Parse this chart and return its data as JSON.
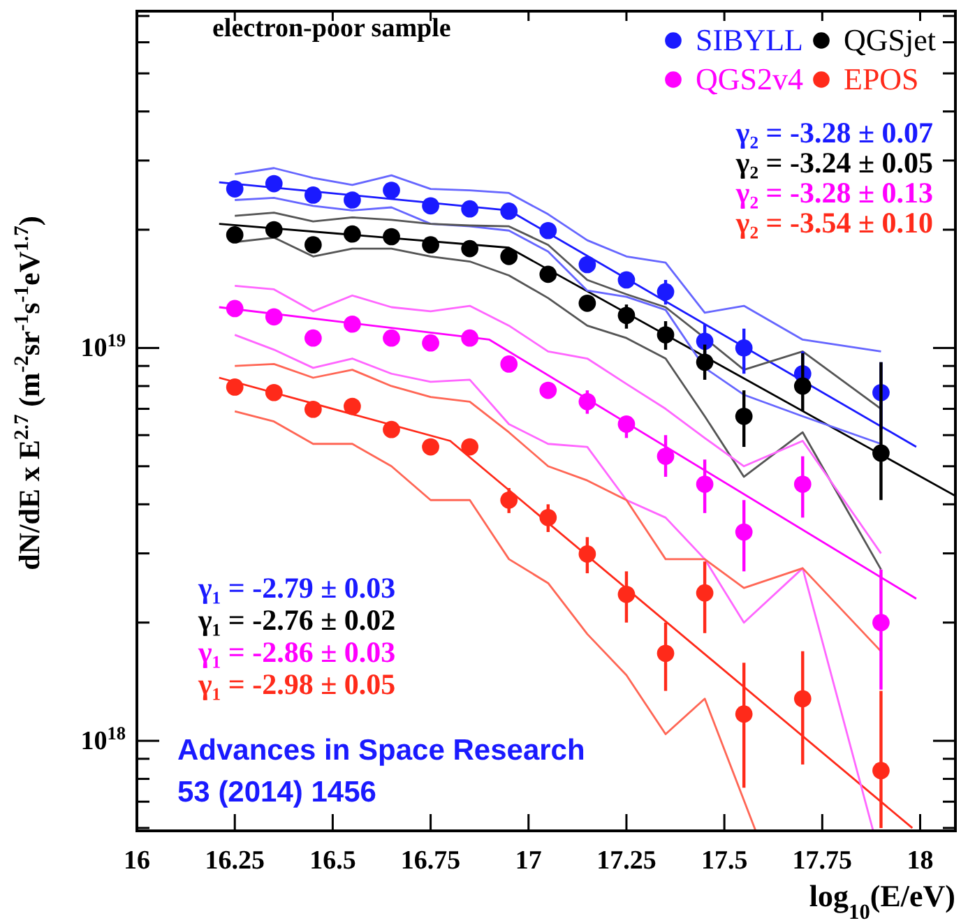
{
  "chart_data": {
    "type": "scatter",
    "xlabel": "log$_{10}$(E/eV)",
    "ylabel": "dN/dE x E$^{2.7}$ (m$^{-2}$sr$^{-1}$s$^{-1}$eV$^{1.7}$)",
    "annotations": [
      "electron-poor sample",
      "γ₂ = -3.28 ± 0.07",
      "γ₂ = -3.24 ± 0.05",
      "γ₂ = -3.28 ± 0.13",
      "γ₂ = -3.54 ± 0.10",
      "γ₁ = -2.79 ± 0.03",
      "γ₁ = -2.76 ± 0.02",
      "γ₁ = -2.86 ± 0.03",
      "γ₁ = -2.98 ± 0.05",
      "Advances in Space Research\n53 (2014) 1456"
    ],
    "x": [
      16.25,
      16.35,
      16.45,
      16.55,
      16.65,
      16.75,
      16.85,
      16.95,
      17.05,
      17.15,
      17.25,
      17.35,
      17.45,
      17.55,
      17.7,
      17.9
    ],
    "log": "y",
    "legend": "top right",
    "xlim": [
      16,
      18.09
    ],
    "xticks": [
      16,
      16.25,
      16.5,
      16.75,
      17,
      17.25,
      17.5,
      17.75,
      18
    ],
    "ylim": [
      5.9e+17,
      7.2e+19
    ],
    "yticks": [
      {
        "value": 6e+17,
        "label": null
      },
      {
        "value": 7e+17,
        "label": null
      },
      {
        "value": 8e+17,
        "label": null
      },
      {
        "value": 9e+17,
        "label": null
      },
      {
        "value": 1e+18,
        "label": "10$^{18}$"
      },
      {
        "value": 2e+18,
        "label": null
      },
      {
        "value": 3e+18,
        "label": null
      },
      {
        "value": 4e+18,
        "label": null
      },
      {
        "value": 5e+18,
        "label": null
      },
      {
        "value": 6e+18,
        "label": null
      },
      {
        "value": 7e+18,
        "label": null
      },
      {
        "value": 8e+18,
        "label": null
      },
      {
        "value": 9e+18,
        "label": null
      },
      {
        "value": 1e+19,
        "label": "10$^{19}$"
      },
      {
        "value": 2e+19,
        "label": null
      },
      {
        "value": 3e+19,
        "label": null
      },
      {
        "value": 4e+19,
        "label": null
      },
      {
        "value": 5e+19,
        "label": null
      },
      {
        "value": 6e+19,
        "label": null
      },
      {
        "value": 7e+19,
        "label": null
      }
    ],
    "series": [
      {
        "name": "SIBYLL",
        "marker": "circle",
        "color": "#1a1aff",
        "values": [
          2.54e+19,
          2.62e+19,
          2.45e+19,
          2.38e+19,
          2.52e+19,
          2.3e+19,
          2.26e+19,
          2.23e+19,
          1.99e+19,
          1.63e+19,
          1.49e+19,
          1.39e+19,
          1.04e+19,
          1e+19,
          8.6e+18,
          7.7e+18
        ],
        "errors": [
          null,
          null,
          null,
          null,
          null,
          null,
          null,
          null,
          null,
          null,
          null,
          [
            1.29e+19,
            1.49e+19
          ],
          [
            9.4e+18,
            1.15e+19
          ],
          [
            8.6e+18,
            1.12e+19
          ],
          [
            7.8e+18,
            9.8e+18
          ],
          [
            6.2e+18,
            9.2e+18
          ]
        ]
      },
      {
        "name": "QGSjet",
        "marker": "circle",
        "color": "#000000",
        "values": [
          1.94e+19,
          2e+19,
          1.83e+19,
          1.95e+19,
          1.92e+19,
          1.83e+19,
          1.79e+19,
          1.71e+19,
          1.54e+19,
          1.3e+19,
          1.21e+19,
          1.08e+19,
          9.2e+18,
          6.7e+18,
          8e+18,
          5.4e+18
        ],
        "errors": [
          null,
          null,
          null,
          null,
          null,
          null,
          null,
          null,
          null,
          null,
          [
            1.12e+19,
            1.29e+19
          ],
          [
            9.9e+18,
            1.17e+19
          ],
          [
            8.3e+18,
            1.02e+19
          ],
          [
            5.6e+18,
            7.8e+18
          ],
          [
            6.9e+18,
            9.7e+18
          ],
          [
            4.1e+18,
            9.2e+18
          ]
        ]
      },
      {
        "name": "QGS2v4",
        "marker": "circle",
        "color": "#ff00ff",
        "values": [
          1.26e+19,
          1.2e+19,
          1.06e+19,
          1.15e+19,
          1.06e+19,
          1.03e+19,
          1.06e+19,
          9.1e+18,
          7.8e+18,
          7.3e+18,
          6.4e+18,
          5.3e+18,
          4.5e+18,
          3.4e+18,
          4.5e+18,
          2e+18
        ],
        "errors": [
          null,
          null,
          null,
          null,
          null,
          null,
          null,
          null,
          null,
          [
            6.8e+18,
            7.8e+18
          ],
          [
            5.9e+18,
            6.7e+18
          ],
          [
            4.7e+18,
            6e+18
          ],
          [
            3.8e+18,
            5.2e+18
          ],
          [
            2.7e+18,
            4.1e+18
          ],
          [
            3.7e+18,
            5.3e+18
          ],
          [
            1.35e+18,
            2.73e+18
          ]
        ]
      },
      {
        "name": "EPOS",
        "marker": "circle",
        "color": "#ff2a1a",
        "values": [
          7.95e+18,
          7.7e+18,
          6.98e+18,
          7.1e+18,
          6.2e+18,
          5.6e+18,
          5.6e+18,
          4.1e+18,
          3.7e+18,
          2.99e+18,
          2.36e+18,
          1.67e+18,
          2.38e+18,
          1.17e+18,
          1.28e+18,
          8.4e+17
        ],
        "errors": [
          null,
          null,
          null,
          null,
          null,
          null,
          null,
          [
            3.8e+18,
            4.4e+18
          ],
          [
            3.4e+18,
            4e+18
          ],
          [
            2.67e+18,
            3.3e+18
          ],
          [
            2e+18,
            2.7e+18
          ],
          [
            1.34e+18,
            2e+18
          ],
          [
            1.88e+18,
            2.86e+18
          ],
          [
            7.6e+17,
            1.58e+18
          ],
          [
            8.7e+17,
            1.69e+18
          ],
          [
            6e+17,
            1.34e+18
          ]
        ]
      },
      {
        "type": "line",
        "color": "#1a1aff",
        "x": [
          16.21,
          16.95,
          17.99
        ],
        "values": [
          2.64e+19,
          2.24e+19,
          5.6e+18
        ]
      },
      {
        "type": "line",
        "color": "#000000",
        "x": [
          16.21,
          16.95,
          18.09
        ],
        "values": [
          2.07e+19,
          1.8e+19,
          4.2e+18
        ]
      },
      {
        "type": "line",
        "color": "#ff00ff",
        "x": [
          16.21,
          16.9,
          17.99
        ],
        "values": [
          1.27e+19,
          1.05e+19,
          2.3e+18
        ]
      },
      {
        "type": "line",
        "color": "#ff2a1a",
        "x": [
          16.21,
          16.8,
          17.98
        ],
        "values": [
          8.4e+18,
          5.8e+18,
          6e+17
        ]
      },
      {
        "type": "line",
        "color": "#6666ff",
        "values": [
          2.77e+19,
          2.87e+19,
          2.71e+19,
          2.6e+19,
          2.75e+19,
          2.54e+19,
          2.52e+19,
          2.48e+19,
          2.19e+19,
          1.88e+19,
          1.71e+19,
          1.65e+19,
          1.23e+19,
          1.28e+19,
          1.05e+19,
          9.8e+18
        ]
      },
      {
        "type": "line",
        "color": "#6666ff",
        "values": [
          2.38e+19,
          2.41e+19,
          2.3e+19,
          2.24e+19,
          2.28e+19,
          2.07e+19,
          2.04e+19,
          1.99e+19,
          1.76e+19,
          1.4e+19,
          1.35e+19,
          1.25e+19,
          8.9e+18,
          7.6e+18,
          6.7e+18,
          5.7e+18
        ]
      },
      {
        "type": "line",
        "color": "#555555",
        "values": [
          2.17e+19,
          2.21e+19,
          2.1e+19,
          2.15e+19,
          2.12e+19,
          2.07e+19,
          2.05e+19,
          2.04e+19,
          1.83e+19,
          1.49e+19,
          1.37e+19,
          1.27e+19,
          1.06e+19,
          8.8e+18,
          9.8e+18,
          7e+18
        ]
      },
      {
        "type": "line",
        "color": "#555555",
        "values": [
          1.86e+19,
          1.91e+19,
          1.71e+19,
          1.79e+19,
          1.79e+19,
          1.71e+19,
          1.66e+19,
          1.53e+19,
          1.34e+19,
          1.14e+19,
          1.06e+19,
          9.4e+18,
          6.7e+18,
          4.7e+18,
          6.1e+18,
          2.73e+18
        ]
      },
      {
        "type": "line",
        "color": "#ff66ff",
        "values": [
          1.44e+19,
          1.41e+19,
          1.24e+19,
          1.36e+19,
          1.27e+19,
          1.24e+19,
          1.28e+19,
          1.14e+19,
          9.8e+18,
          9.4e+18,
          8.1e+18,
          7e+18,
          5.9e+18,
          5e+18,
          5.8e+18,
          3e+18
        ]
      },
      {
        "type": "line",
        "color": "#ff66ff",
        "x": [
          16.25,
          16.35,
          16.45,
          16.55,
          16.65,
          16.75,
          16.85,
          16.95,
          17.05,
          17.15,
          17.25,
          17.35,
          17.45,
          17.55,
          17.7,
          17.88
        ],
        "values": [
          1.08e+19,
          9.9e+18,
          8.9e+18,
          9.4e+18,
          8.6e+18,
          8.2e+18,
          8.3e+18,
          6.4e+18,
          5.7e+18,
          5.6e+18,
          4.1e+18,
          3.7e+18,
          2.9e+18,
          2e+18,
          2.75e+18,
          5.9e+17
        ]
      },
      {
        "type": "line",
        "color": "#ff6655",
        "values": [
          9e+18,
          9.1e+18,
          8.4e+18,
          8.8e+18,
          8e+18,
          7.5e+18,
          7.3e+18,
          6.1e+18,
          5e+18,
          4.6e+18,
          4.1e+18,
          2.9e+18,
          2.9e+18,
          2.45e+18,
          2.75e+18,
          1.69e+18
        ]
      },
      {
        "type": "line",
        "color": "#ff6655",
        "x": [
          16.25,
          16.35,
          16.45,
          16.55,
          16.65,
          16.75,
          16.85,
          16.95,
          17.05,
          17.15,
          17.25,
          17.35,
          17.45,
          17.58
        ],
        "values": [
          6.9e+18,
          6.5e+18,
          5.7e+18,
          5.7e+18,
          5e+18,
          4.1e+18,
          4.1e+18,
          2.9e+18,
          2.52e+18,
          1.87e+18,
          1.47e+18,
          1.04e+18,
          1.28e+18,
          5.9e+17
        ]
      }
    ]
  }
}
